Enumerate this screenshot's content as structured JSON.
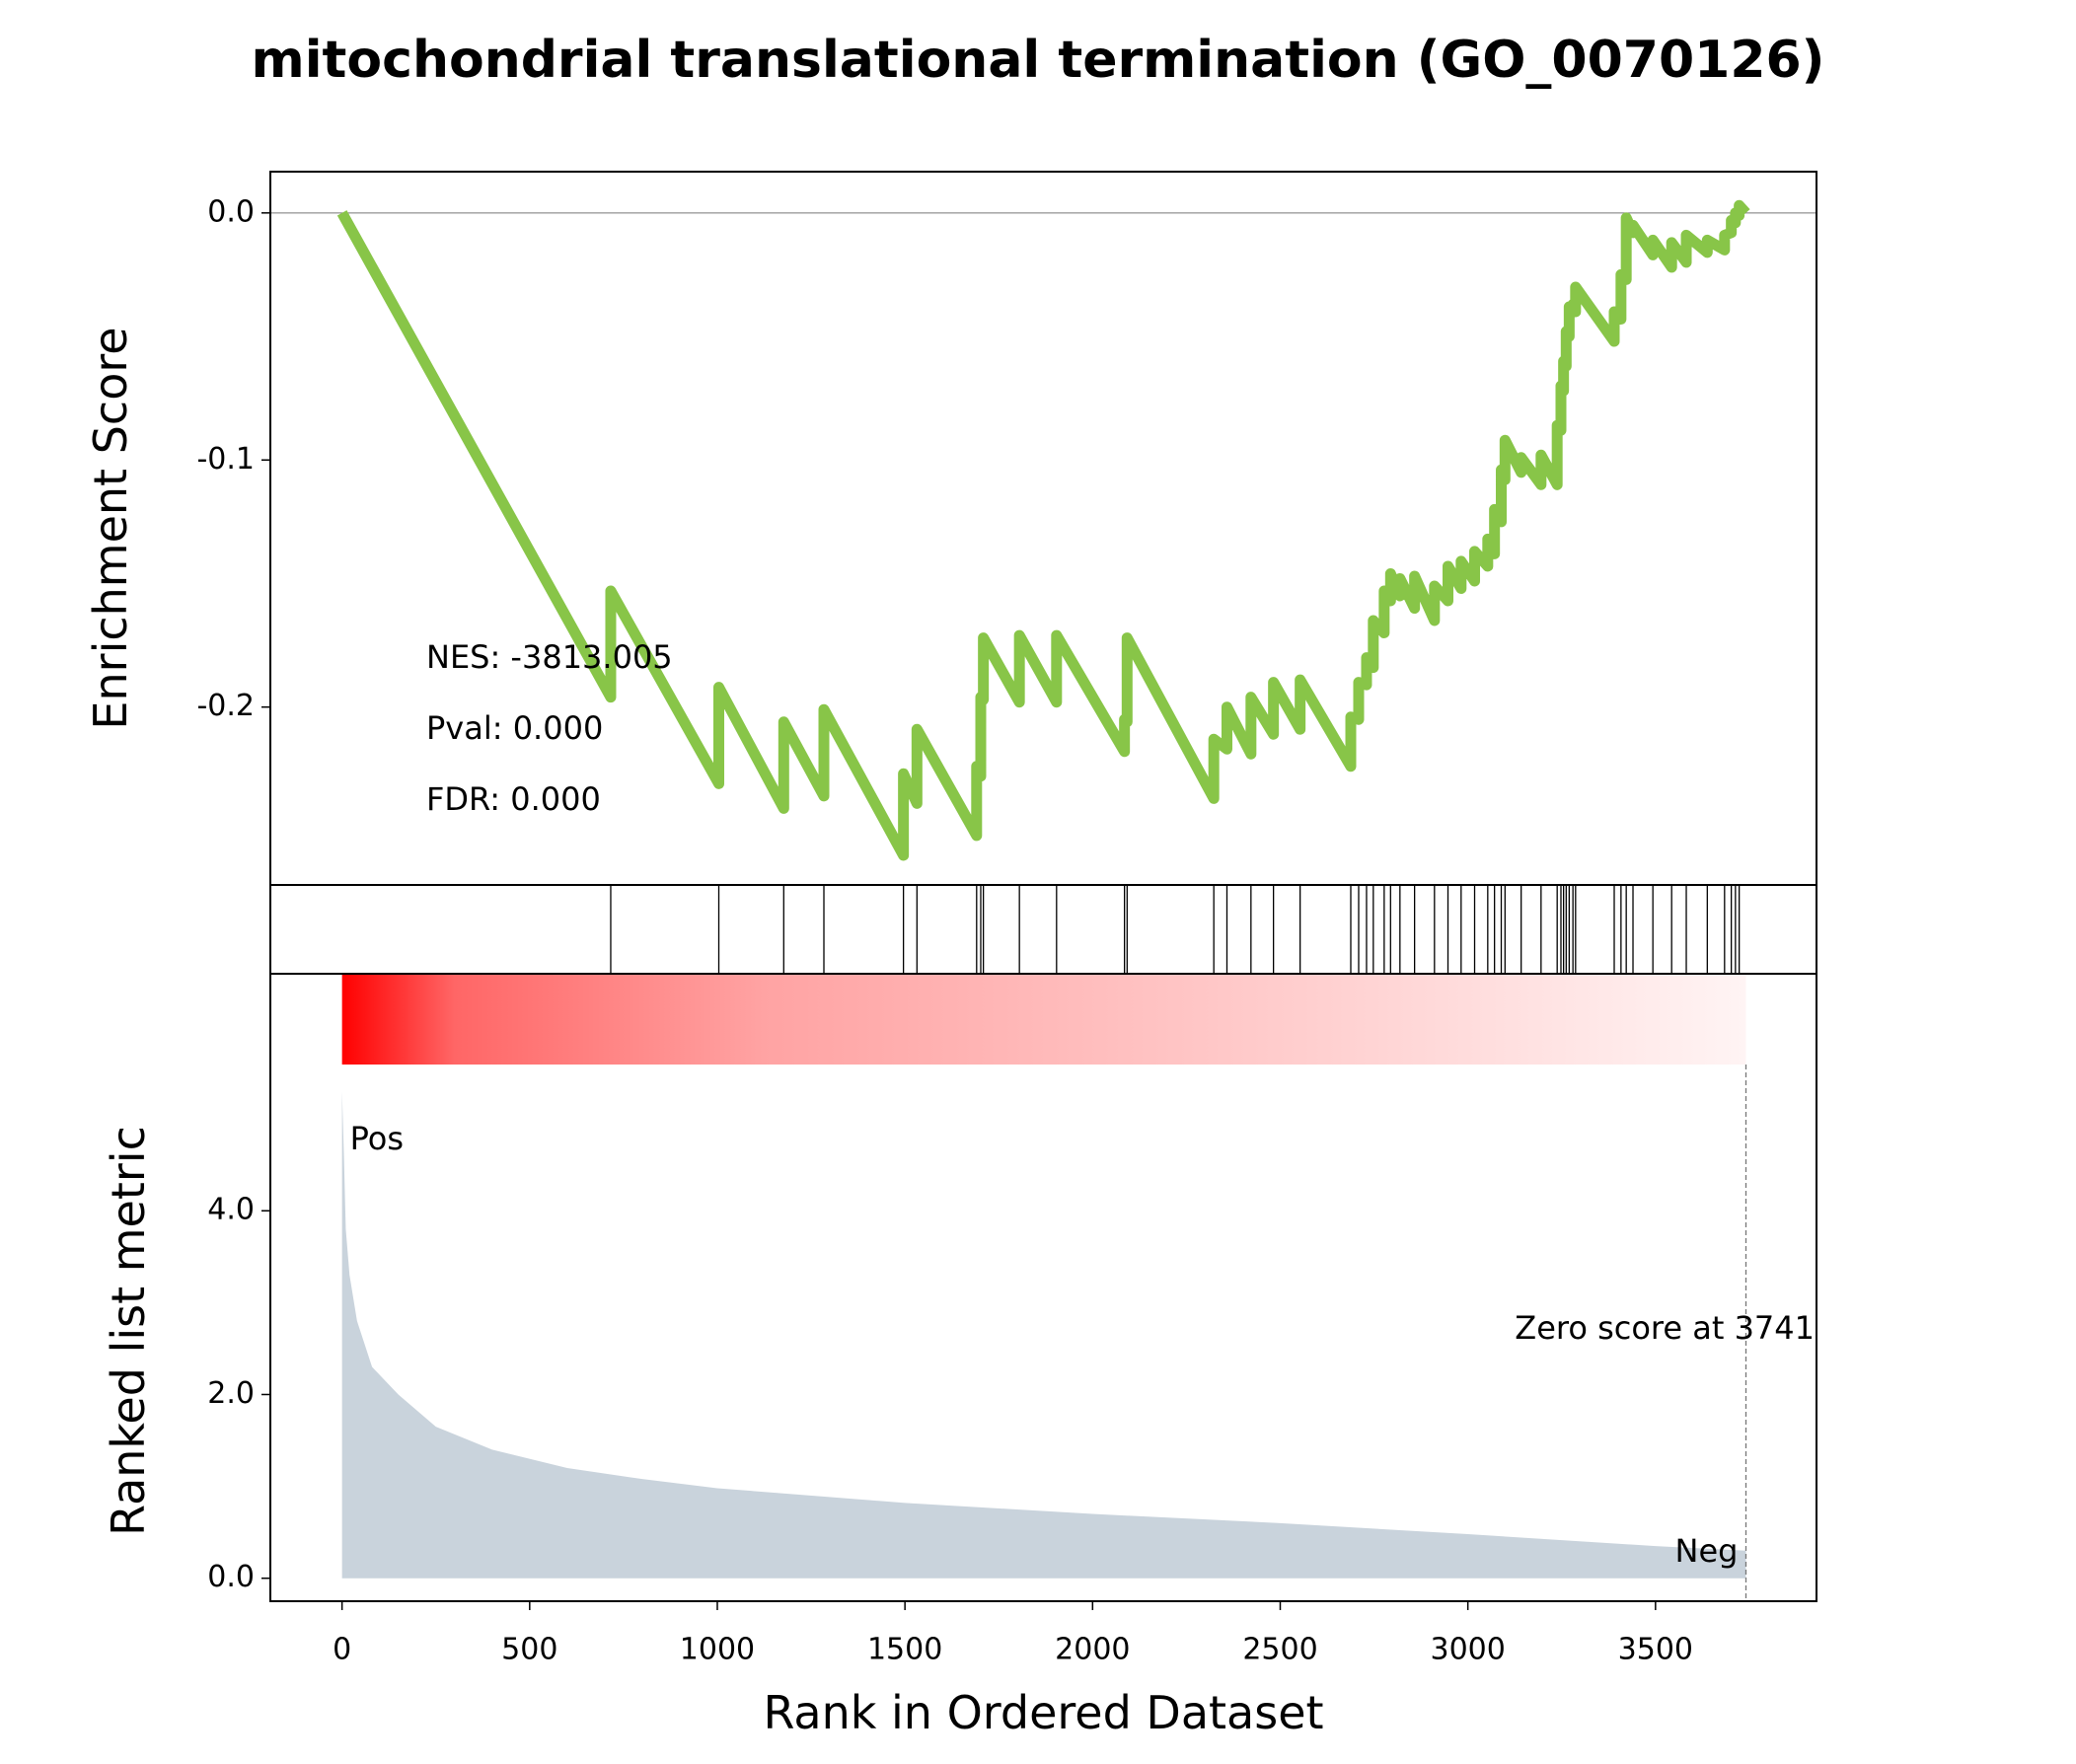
{
  "chart_data": [
    {
      "type": "line",
      "title": "mitochondrial translational termination (GO_0070126)",
      "ylabel": "Enrichment Score",
      "annotations": [
        "NES: -3813.005",
        "Pval: 0.000",
        "FDR: 0.000"
      ],
      "color": "#88c548",
      "xlim": [
        -191,
        3929
      ],
      "ylim": [
        -0.272,
        0.0167
      ],
      "yticks": [
        {
          "value": 0,
          "label": "0.0"
        },
        -0.1,
        -0.2
      ],
      "x": [
        0,
        716,
        716,
        1004,
        1004,
        1177,
        1177,
        1284,
        1284,
        1496,
        1496,
        1532,
        1532,
        1691,
        1691,
        1702,
        1702,
        1709,
        1709,
        1805,
        1805,
        1904,
        1904,
        2085,
        2085,
        2092,
        2092,
        2323,
        2323,
        2358,
        2358,
        2422,
        2422,
        2482,
        2482,
        2553,
        2553,
        2688,
        2688,
        2709,
        2709,
        2730,
        2730,
        2748,
        2748,
        2777,
        2777,
        2794,
        2794,
        2819,
        2819,
        2858,
        2858,
        2911,
        2911,
        2947,
        2947,
        2982,
        2982,
        3018,
        3018,
        3053,
        3053,
        3071,
        3071,
        3089,
        3089,
        3099,
        3099,
        3142,
        3142,
        3195,
        3195,
        3238,
        3238,
        3248,
        3248,
        3255,
        3255,
        3262,
        3262,
        3270,
        3270,
        3280,
        3280,
        3287,
        3287,
        3390,
        3390,
        3408,
        3408,
        3422,
        3422,
        3440,
        3440,
        3493,
        3493,
        3543,
        3543,
        3582,
        3582,
        3638,
        3638,
        3684,
        3684,
        3702,
        3702,
        3713,
        3713,
        3723,
        3723,
        3741
      ],
      "values": [
        0,
        -0.196,
        -0.153,
        -0.231,
        -0.192,
        -0.241,
        -0.206,
        -0.236,
        -0.201,
        -0.26,
        -0.227,
        -0.239,
        -0.209,
        -0.252,
        -0.224,
        -0.228,
        -0.196,
        -0.197,
        -0.172,
        -0.198,
        -0.171,
        -0.198,
        -0.171,
        -0.218,
        -0.205,
        -0.206,
        -0.172,
        -0.237,
        -0.213,
        -0.217,
        -0.2,
        -0.219,
        -0.196,
        -0.211,
        -0.19,
        -0.209,
        -0.189,
        -0.224,
        -0.204,
        -0.205,
        -0.19,
        -0.191,
        -0.18,
        -0.184,
        -0.165,
        -0.17,
        -0.153,
        -0.157,
        -0.146,
        -0.155,
        -0.148,
        -0.16,
        -0.147,
        -0.165,
        -0.151,
        -0.157,
        -0.143,
        -0.152,
        -0.141,
        -0.149,
        -0.137,
        -0.143,
        -0.132,
        -0.138,
        -0.12,
        -0.125,
        -0.104,
        -0.108,
        -0.092,
        -0.105,
        -0.099,
        -0.11,
        -0.098,
        -0.11,
        -0.086,
        -0.088,
        -0.07,
        -0.072,
        -0.06,
        -0.062,
        -0.048,
        -0.05,
        -0.038,
        -0.04,
        -0.037,
        -0.04,
        -0.03,
        -0.052,
        -0.04,
        -0.043,
        -0.025,
        -0.027,
        -0.002,
        -0.008,
        -0.005,
        -0.017,
        -0.011,
        -0.022,
        -0.012,
        -0.02,
        -0.009,
        -0.016,
        -0.011,
        -0.015,
        -0.009,
        -0.008,
        -0.003,
        -0.004,
        0,
        -0.001,
        0.003,
        0
      ]
    },
    {
      "type": "rug",
      "xlim": [
        -191,
        3929
      ],
      "x": [
        716,
        1004,
        1177,
        1284,
        1496,
        1532,
        1691,
        1702,
        1709,
        1805,
        1904,
        2085,
        2092,
        2323,
        2358,
        2422,
        2482,
        2553,
        2688,
        2709,
        2730,
        2748,
        2777,
        2794,
        2819,
        2858,
        2911,
        2947,
        2982,
        3018,
        3053,
        3071,
        3089,
        3099,
        3142,
        3195,
        3238,
        3248,
        3255,
        3262,
        3270,
        3280,
        3287,
        3390,
        3408,
        3422,
        3440,
        3493,
        3543,
        3582,
        3638,
        3684,
        3702,
        3713,
        3723
      ]
    },
    {
      "type": "area",
      "xlabel": "Rank in Ordered Dataset",
      "ylabel": "Ranked list metric",
      "annotations": [
        "Pos",
        "Neg",
        "Zero score at 3741"
      ],
      "zero_rank": 3741,
      "color": "#c9d3dc",
      "xlim": [
        -191,
        3929
      ],
      "xticks": [
        0,
        500,
        1000,
        1500,
        2000,
        2500,
        3000,
        3500
      ],
      "ylim": [
        -0.25,
        6.58
      ],
      "yticks": [
        {
          "value": 0,
          "label": "0.0"
        },
        {
          "value": 2,
          "label": "2.0"
        },
        {
          "value": 4,
          "label": "4.0"
        }
      ],
      "x": [
        0,
        5,
        10,
        20,
        40,
        80,
        150,
        250,
        400,
        600,
        800,
        1000,
        1500,
        2000,
        2500,
        3000,
        3500,
        3741
      ],
      "values": [
        5.3,
        4.6,
        3.8,
        3.3,
        2.8,
        2.3,
        2.0,
        1.65,
        1.4,
        1.2,
        1.08,
        0.98,
        0.82,
        0.7,
        0.6,
        0.48,
        0.35,
        0.3
      ]
    }
  ]
}
